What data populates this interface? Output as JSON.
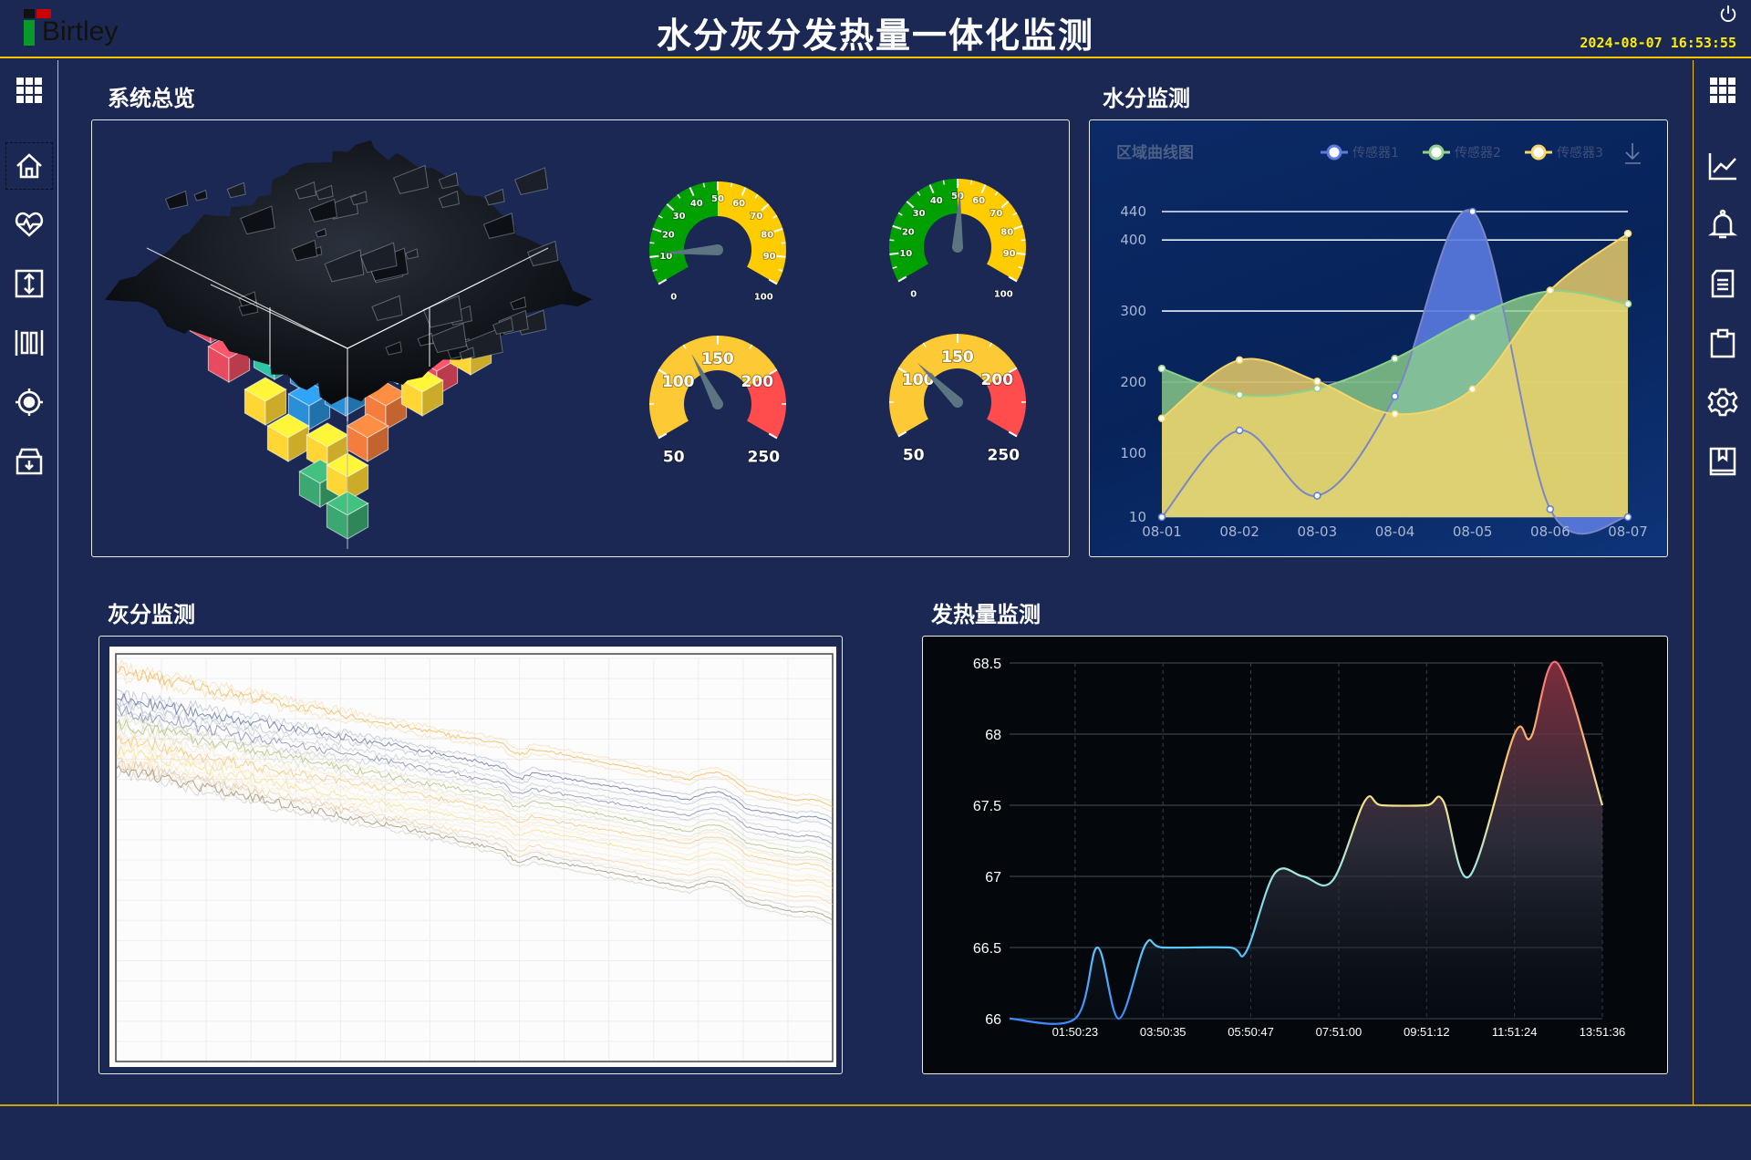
{
  "header": {
    "title": "水分灰分发热量一体化监测",
    "logo_text": "Birtley",
    "datetime": "2024-08-07 16:53:55",
    "power_icon": "power-icon"
  },
  "colors": {
    "background": "#1a2853",
    "accent_line": "#f5c400",
    "datetime": "#ffee00"
  },
  "left_sidebar": {
    "items": [
      {
        "icon": "grid-menu-icon"
      },
      {
        "icon": "home-icon",
        "selected": true
      },
      {
        "icon": "heart-pulse-icon"
      },
      {
        "icon": "vertical-resize-icon"
      },
      {
        "icon": "barcode-columns-icon"
      },
      {
        "icon": "target-icon"
      },
      {
        "icon": "archive-download-icon"
      }
    ]
  },
  "right_sidebar": {
    "items": [
      {
        "icon": "grid-menu-icon"
      },
      {
        "icon": "line-chart-icon"
      },
      {
        "icon": "bell-icon"
      },
      {
        "icon": "document-icon"
      },
      {
        "icon": "clipboard-icon"
      },
      {
        "icon": "settings-gear-icon"
      },
      {
        "icon": "bookmark-book-icon"
      }
    ]
  },
  "sections": {
    "overview": "系统总览",
    "moisture": "水分监测",
    "ash": "灰分监测",
    "heat": "发热量监测"
  },
  "gauges": [
    {
      "min": 0,
      "max": 100,
      "value": 11,
      "major_step": 10,
      "minor_step": 5,
      "bands": [
        {
          "to": 50,
          "color": "#00a000"
        },
        {
          "to": 100,
          "color": "#ffcc00"
        }
      ]
    },
    {
      "min": 0,
      "max": 100,
      "value": 51,
      "major_step": 10,
      "minor_step": 5,
      "bands": [
        {
          "to": 50,
          "color": "#00a000"
        },
        {
          "to": 100,
          "color": "#ffcc00"
        }
      ]
    },
    {
      "min": 50,
      "max": 250,
      "value": 127,
      "major_step": 50,
      "minor_step": 25,
      "bands": [
        {
          "to": 200,
          "color": "#fdc935"
        },
        {
          "to": 250,
          "color": "#ff4c4c"
        }
      ]
    },
    {
      "min": 50,
      "max": 250,
      "value": 112,
      "major_step": 50,
      "minor_step": 25,
      "bands": [
        {
          "to": 200,
          "color": "#fdc935"
        },
        {
          "to": 250,
          "color": "#ff4c4c"
        }
      ]
    }
  ],
  "chart_data": [
    {
      "type": "area",
      "title": "区域曲线图",
      "categories": [
        "08-01",
        "08-02",
        "08-03",
        "08-04",
        "08-05",
        "08-06",
        "08-07"
      ],
      "yticks": [
        10,
        100,
        200,
        300,
        400,
        440
      ],
      "ylim": [
        10,
        440
      ],
      "smooth": true,
      "legend": "top-right",
      "download_icon": "download-icon",
      "series": [
        {
          "name": "传感器1",
          "color": "#5b7be0",
          "values": [
            10,
            132,
            40,
            180,
            440,
            21,
            10
          ]
        },
        {
          "name": "传感器2",
          "color": "#8fd18a",
          "values": [
            219,
            182,
            191,
            233,
            291,
            328,
            310
          ]
        },
        {
          "name": "传感器3",
          "color": "#f5d66a",
          "values": [
            149,
            231,
            201,
            155,
            190,
            329,
            409
          ]
        }
      ]
    },
    {
      "type": "line",
      "xlabel": "",
      "ylabel": "",
      "grid": true,
      "series": [
        {
          "color": "#f5b041",
          "values": [
            97,
            90,
            83,
            77,
            70,
            63
          ]
        },
        {
          "color": "#5a6a9a",
          "values": [
            90,
            84,
            78,
            71,
            65,
            59
          ]
        },
        {
          "color": "#7a84a8",
          "values": [
            87,
            80,
            74,
            67,
            61,
            54
          ]
        },
        {
          "color": "#b0b870",
          "values": [
            84,
            77,
            70,
            64,
            57,
            50
          ]
        },
        {
          "color": "#f7c46c",
          "values": [
            80,
            73,
            67,
            60,
            54,
            47
          ]
        },
        {
          "color": "#f9dc80",
          "values": [
            77,
            70,
            63,
            57,
            50,
            43
          ]
        },
        {
          "color": "#f8cf9a",
          "values": [
            74,
            67,
            60,
            53,
            46,
            39
          ]
        },
        {
          "color": "#9a8a6a",
          "values": [
            73,
            65,
            58,
            50,
            43,
            35
          ]
        }
      ]
    },
    {
      "type": "area",
      "ylim": [
        66,
        68.5
      ],
      "yticks": [
        "66",
        "66.5",
        "67",
        "67.5",
        "68",
        "68.5"
      ],
      "xticks": [
        "01:50:23",
        "03:50:35",
        "05:50:47",
        "07:51:00",
        "09:51:12",
        "11:51:24",
        "13:51:36"
      ],
      "grid": true,
      "points": [
        [
          "00:20:43",
          66.0
        ],
        [
          "01:50:23",
          66.0
        ],
        [
          "02:20:55",
          66.5
        ],
        [
          "02:50:10",
          66.0
        ],
        [
          "03:26:33",
          66.52
        ],
        [
          "03:50:35",
          66.5
        ],
        [
          "05:21:33",
          66.5
        ],
        [
          "05:44:17",
          66.47
        ],
        [
          "06:23:16",
          67.02
        ],
        [
          "07:02:15",
          67.0
        ],
        [
          "07:42:32",
          66.97
        ],
        [
          "08:26:42",
          67.53
        ],
        [
          "08:49:27",
          67.5
        ],
        [
          "09:51:11",
          67.5
        ],
        [
          "10:13:55",
          67.53
        ],
        [
          "10:49:39",
          67.0
        ],
        [
          "11:51:23",
          68.0
        ],
        [
          "12:14:07",
          67.98
        ],
        [
          "12:49:52",
          68.5
        ],
        [
          "13:51:36",
          67.5
        ]
      ],
      "color_stops": [
        "#3d8bff",
        "#5ac8fa",
        "#9ee6e0",
        "#f5e28a",
        "#f7b267",
        "#f36d7a"
      ]
    }
  ]
}
